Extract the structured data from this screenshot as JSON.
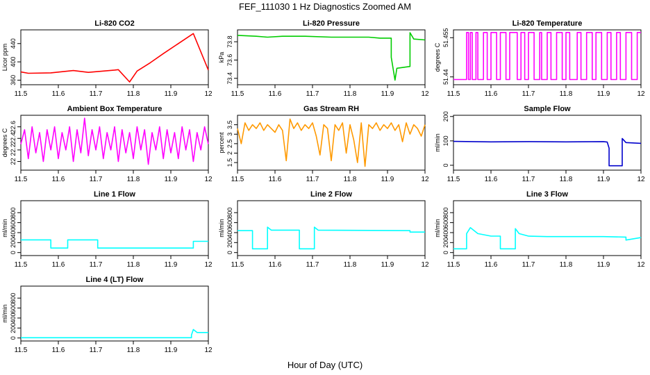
{
  "figure": {
    "title": "FEF_111030  1 Hz Diagnostics Zoomed AM",
    "xlabel": "Hour of Day (UTC)"
  },
  "chart_data": [
    {
      "type": "line",
      "title": "Li-820 CO2",
      "ylabel": "Licor ppm",
      "color": "#ff0000",
      "xlim": [
        11.5,
        12.0
      ],
      "ylim": [
        350,
        470
      ],
      "xticks": [
        11.5,
        11.6,
        11.7,
        11.8,
        11.9,
        12.0
      ],
      "yticks": [
        360,
        400,
        440
      ],
      "series": [
        {
          "x": [
            11.5,
            11.52,
            11.52,
            11.58,
            11.58,
            11.64,
            11.64,
            11.68,
            11.68,
            11.75,
            11.75,
            11.76,
            11.76,
            11.79,
            11.79,
            11.81,
            11.81,
            11.845,
            11.845,
            11.88,
            11.88,
            11.96,
            11.96,
            12.0
          ],
          "y": [
            378,
            375,
            375,
            376,
            376,
            381,
            381,
            377,
            377,
            382,
            382,
            383,
            383,
            356,
            356,
            380,
            380,
            398,
            398,
            418,
            418,
            462,
            462,
            382
          ]
        }
      ]
    },
    {
      "type": "line",
      "title": "Li-820 Pressure",
      "ylabel": "kPa",
      "color": "#00cc00",
      "xlim": [
        11.5,
        12.0
      ],
      "ylim": [
        73.33,
        73.93
      ],
      "xticks": [
        11.5,
        11.6,
        11.7,
        11.8,
        11.9,
        12.0
      ],
      "yticks": [
        73.4,
        73.6,
        73.8
      ],
      "series": [
        {
          "x": [
            11.5,
            11.55,
            11.58,
            11.62,
            11.68,
            11.75,
            11.8,
            11.85,
            11.88,
            11.91,
            11.91,
            11.92,
            11.925,
            11.96,
            11.96,
            11.97,
            12.0
          ],
          "y": [
            73.87,
            73.86,
            73.85,
            73.86,
            73.86,
            73.85,
            73.85,
            73.85,
            73.84,
            73.84,
            73.63,
            73.38,
            73.51,
            73.53,
            73.9,
            73.83,
            73.82
          ]
        }
      ]
    },
    {
      "type": "line",
      "title": "Li-820 Temperature",
      "ylabel": "degrees C",
      "color": "#ff00ff",
      "xlim": [
        11.5,
        12.0
      ],
      "ylim": [
        51.437,
        51.458
      ],
      "xticks": [
        11.5,
        11.6,
        11.7,
        11.8,
        11.9,
        12.0
      ],
      "yticks": [
        51.44,
        51.455
      ],
      "series": [
        {
          "x": [
            11.5,
            11.535,
            11.535,
            11.54,
            11.54,
            11.545,
            11.545,
            11.55,
            11.55,
            11.56,
            11.56,
            11.565,
            11.565,
            11.58,
            11.58,
            11.59,
            11.59,
            11.6,
            11.6,
            11.615,
            11.615,
            11.625,
            11.625,
            11.64,
            11.64,
            11.65,
            11.65,
            11.67,
            11.67,
            11.68,
            11.68,
            11.69,
            11.69,
            11.7,
            11.7,
            11.715,
            11.715,
            11.73,
            11.73,
            11.735,
            11.735,
            11.75,
            11.75,
            11.76,
            11.76,
            11.775,
            11.775,
            11.79,
            11.79,
            11.8,
            11.8,
            11.81,
            11.81,
            11.83,
            11.83,
            11.84,
            11.84,
            11.855,
            11.855,
            11.87,
            11.87,
            11.88,
            11.88,
            11.895,
            11.895,
            11.91,
            11.91,
            11.92,
            11.92,
            11.935,
            11.935,
            11.945,
            11.945,
            11.96,
            11.96,
            11.975,
            11.975,
            11.99,
            11.99,
            12.0
          ],
          "y": [
            51.439,
            51.439,
            51.457,
            51.457,
            51.439,
            51.439,
            51.457,
            51.457,
            51.439,
            51.439,
            51.457,
            51.457,
            51.439,
            51.439,
            51.457,
            51.457,
            51.439,
            51.439,
            51.457,
            51.457,
            51.439,
            51.439,
            51.457,
            51.457,
            51.439,
            51.439,
            51.457,
            51.457,
            51.439,
            51.439,
            51.457,
            51.457,
            51.439,
            51.439,
            51.457,
            51.457,
            51.439,
            51.439,
            51.457,
            51.457,
            51.439,
            51.439,
            51.457,
            51.457,
            51.439,
            51.439,
            51.457,
            51.457,
            51.439,
            51.439,
            51.457,
            51.457,
            51.439,
            51.439,
            51.457,
            51.457,
            51.439,
            51.439,
            51.457,
            51.457,
            51.439,
            51.439,
            51.457,
            51.457,
            51.439,
            51.439,
            51.457,
            51.457,
            51.439,
            51.439,
            51.457,
            51.457,
            51.439,
            51.439,
            51.457,
            51.457,
            51.439,
            51.439,
            51.457,
            51.457
          ]
        }
      ]
    },
    {
      "type": "line",
      "title": "Ambient Box Temperature",
      "ylabel": "degrees C",
      "color": "#ff00ff",
      "xlim": [
        11.5,
        12.0
      ],
      "ylim": [
        21.85,
        22.8
      ],
      "xticks": [
        11.5,
        11.6,
        11.7,
        11.8,
        11.9,
        12.0
      ],
      "yticks": [
        22.0,
        22.2,
        22.4,
        22.6
      ],
      "series": [
        {
          "x": [
            11.5,
            11.51,
            11.52,
            11.53,
            11.54,
            11.55,
            11.56,
            11.57,
            11.58,
            11.59,
            11.6,
            11.61,
            11.62,
            11.63,
            11.64,
            11.65,
            11.66,
            11.67,
            11.68,
            11.69,
            11.7,
            11.71,
            11.72,
            11.73,
            11.74,
            11.75,
            11.76,
            11.77,
            11.78,
            11.79,
            11.8,
            11.81,
            11.82,
            11.83,
            11.84,
            11.85,
            11.86,
            11.87,
            11.88,
            11.89,
            11.9,
            11.91,
            11.92,
            11.93,
            11.94,
            11.95,
            11.96,
            11.97,
            11.98,
            11.99,
            12.0
          ],
          "y": [
            22.3,
            22.55,
            22.05,
            22.6,
            22.15,
            22.5,
            22.0,
            22.55,
            22.2,
            22.6,
            22.05,
            22.5,
            22.2,
            22.6,
            22.0,
            22.55,
            22.15,
            22.75,
            22.1,
            22.55,
            22.2,
            22.6,
            22.05,
            22.5,
            22.2,
            22.6,
            22.0,
            22.55,
            22.15,
            22.5,
            22.05,
            22.6,
            22.2,
            22.55,
            21.95,
            22.5,
            22.2,
            22.6,
            22.05,
            22.55,
            22.15,
            22.5,
            22.05,
            22.6,
            22.2,
            22.55,
            22.0,
            22.5,
            22.2,
            22.6,
            22.3
          ]
        }
      ]
    },
    {
      "type": "line",
      "title": "Gas Stream RH",
      "ylabel": "percent",
      "color": "#ff9900",
      "xlim": [
        11.5,
        12.0
      ],
      "ylim": [
        1.1,
        4.0
      ],
      "xticks": [
        11.5,
        11.6,
        11.7,
        11.8,
        11.9,
        12.0
      ],
      "yticks": [
        1.5,
        2.0,
        2.5,
        3.0,
        3.5
      ],
      "series": [
        {
          "x": [
            11.5,
            11.51,
            11.52,
            11.53,
            11.54,
            11.55,
            11.56,
            11.57,
            11.58,
            11.59,
            11.6,
            11.61,
            11.62,
            11.63,
            11.64,
            11.65,
            11.66,
            11.67,
            11.68,
            11.69,
            11.7,
            11.71,
            11.72,
            11.73,
            11.74,
            11.75,
            11.76,
            11.77,
            11.78,
            11.79,
            11.8,
            11.81,
            11.82,
            11.83,
            11.84,
            11.85,
            11.86,
            11.87,
            11.88,
            11.89,
            11.9,
            11.91,
            11.92,
            11.93,
            11.94,
            11.95,
            11.96,
            11.97,
            11.98,
            11.99,
            12.0
          ],
          "y": [
            3.3,
            2.5,
            3.6,
            3.2,
            3.5,
            3.3,
            3.6,
            3.2,
            3.5,
            3.3,
            3.1,
            3.5,
            3.2,
            1.6,
            3.8,
            3.3,
            3.6,
            3.2,
            3.5,
            3.3,
            3.6,
            2.9,
            1.9,
            3.5,
            3.3,
            1.6,
            3.5,
            3.2,
            3.6,
            2.0,
            3.5,
            2.7,
            1.5,
            3.6,
            1.3,
            3.5,
            3.3,
            3.6,
            3.2,
            3.5,
            3.3,
            3.6,
            3.2,
            3.5,
            2.6,
            3.6,
            3.0,
            3.5,
            3.3,
            2.9,
            3.5
          ]
        }
      ]
    },
    {
      "type": "line",
      "title": "Sample Flow",
      "ylabel": "ml/min",
      "color": "#0000cc",
      "xlim": [
        11.5,
        12.0
      ],
      "ylim": [
        -20,
        205
      ],
      "xticks": [
        11.5,
        11.6,
        11.7,
        11.8,
        11.9,
        12.0
      ],
      "yticks": [
        0,
        100,
        200
      ],
      "series": [
        {
          "x": [
            11.5,
            11.6,
            11.7,
            11.8,
            11.9,
            11.91,
            11.915,
            11.915,
            11.95,
            11.95,
            11.96,
            12.0
          ],
          "y": [
            98,
            96,
            97,
            96,
            97,
            95,
            70,
            -2,
            -2,
            110,
            93,
            90
          ]
        }
      ]
    },
    {
      "type": "line",
      "title": "Line 1 Flow",
      "ylabel": "ml/min",
      "color": "#00ffff",
      "xlim": [
        11.5,
        12.0
      ],
      "ylim": [
        -60,
        1040
      ],
      "xticks": [
        11.5,
        11.6,
        11.7,
        11.8,
        11.9,
        12.0
      ],
      "yticks": [
        0,
        200,
        400,
        600,
        800
      ],
      "series": [
        {
          "x": [
            11.5,
            11.58,
            11.58,
            11.625,
            11.625,
            11.705,
            11.705,
            11.96,
            11.96,
            12.0
          ],
          "y": [
            255,
            255,
            90,
            90,
            255,
            255,
            90,
            90,
            225,
            225
          ]
        }
      ]
    },
    {
      "type": "line",
      "title": "Line 2 Flow",
      "ylabel": "ml/min",
      "color": "#00ffff",
      "xlim": [
        11.5,
        12.0
      ],
      "ylim": [
        -60,
        1040
      ],
      "xticks": [
        11.5,
        11.6,
        11.7,
        11.8,
        11.9,
        12.0
      ],
      "yticks": [
        0,
        200,
        400,
        600,
        800
      ],
      "series": [
        {
          "x": [
            11.5,
            11.54,
            11.54,
            11.58,
            11.58,
            11.59,
            11.665,
            11.665,
            11.705,
            11.705,
            11.715,
            11.96,
            11.96,
            12.0
          ],
          "y": [
            440,
            440,
            75,
            75,
            510,
            450,
            450,
            75,
            75,
            510,
            450,
            440,
            410,
            410
          ]
        }
      ]
    },
    {
      "type": "line",
      "title": "Line 3 Flow",
      "ylabel": "ml/min",
      "color": "#00ffff",
      "xlim": [
        11.5,
        12.0
      ],
      "ylim": [
        -60,
        1040
      ],
      "xticks": [
        11.5,
        11.6,
        11.7,
        11.8,
        11.9,
        12.0
      ],
      "yticks": [
        0,
        200,
        400,
        600,
        800
      ],
      "series": [
        {
          "x": [
            11.5,
            11.535,
            11.535,
            11.545,
            11.565,
            11.6,
            11.625,
            11.625,
            11.665,
            11.665,
            11.675,
            11.7,
            11.75,
            11.9,
            11.96,
            11.96,
            12.0
          ],
          "y": [
            75,
            75,
            380,
            500,
            380,
            330,
            330,
            75,
            75,
            480,
            380,
            330,
            320,
            320,
            310,
            250,
            300
          ]
        }
      ]
    },
    {
      "type": "line",
      "title": "Line 4 (LT) Flow",
      "ylabel": "ml/min",
      "color": "#00ffff",
      "xlim": [
        11.5,
        12.0
      ],
      "ylim": [
        -60,
        1040
      ],
      "xticks": [
        11.5,
        11.6,
        11.7,
        11.8,
        11.9,
        12.0
      ],
      "yticks": [
        0,
        200,
        400,
        600,
        800
      ],
      "series": [
        {
          "x": [
            11.5,
            11.7,
            11.955,
            11.955,
            11.96,
            11.97,
            12.0
          ],
          "y": [
            5,
            5,
            5,
            60,
            170,
            110,
            110
          ]
        }
      ]
    }
  ]
}
